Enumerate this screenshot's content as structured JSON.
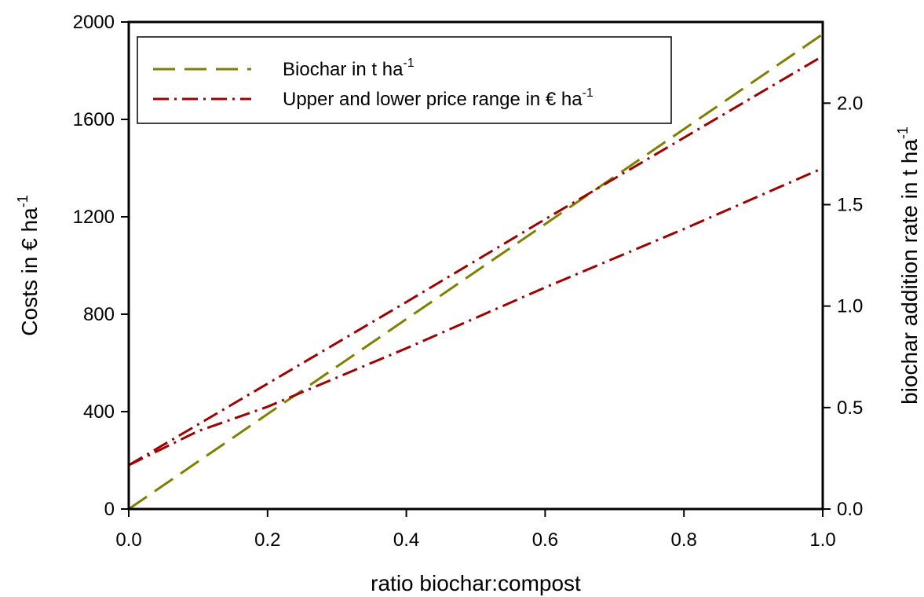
{
  "chart_data": {
    "type": "line",
    "xlabel": "ratio biochar:compost",
    "ylabel": {
      "main": "Costs in € ha",
      "sup": "-1"
    },
    "y2label": {
      "main": "biochar addition rate in t ha",
      "sup": "-1"
    },
    "xlim": [
      0,
      1
    ],
    "ylim": [
      0,
      2000
    ],
    "y2lim": [
      0,
      2.4
    ],
    "x_ticks": [
      "0.0",
      "0.2",
      "0.4",
      "0.6",
      "0.8",
      "1.0"
    ],
    "y_ticks": [
      "0",
      "400",
      "800",
      "1200",
      "1600",
      "2000"
    ],
    "y2_ticks": [
      "0.0",
      "0.5",
      "1.0",
      "1.5",
      "2.0"
    ],
    "grid": false,
    "legend_placement": "top-left",
    "legend": [
      {
        "main": "Biochar in t ha",
        "sup": "-1",
        "style": "dashed",
        "color": "#808000"
      },
      {
        "main": "Upper and lower price range in € ha",
        "sup": "-1",
        "style": "dash-dot",
        "color": "#a00000"
      }
    ],
    "series": [
      {
        "axis": "right",
        "style": "dashed",
        "color": "#808000",
        "x": [
          0,
          1
        ],
        "y": [
          0,
          2.34
        ]
      },
      {
        "axis": "left",
        "style": "dash-dot",
        "color": "#a00000",
        "x": [
          0,
          0.2,
          0.4,
          0.6,
          0.8,
          1.0
        ],
        "y": [
          180,
          515,
          850,
          1190,
          1525,
          1860
        ]
      },
      {
        "axis": "left",
        "style": "dash-dot",
        "color": "#a00000",
        "x": [
          0,
          0.1,
          0.2,
          0.3,
          0.4,
          0.6,
          0.8,
          1.0
        ],
        "y": [
          180,
          320,
          420,
          540,
          660,
          910,
          1150,
          1400
        ]
      }
    ]
  }
}
